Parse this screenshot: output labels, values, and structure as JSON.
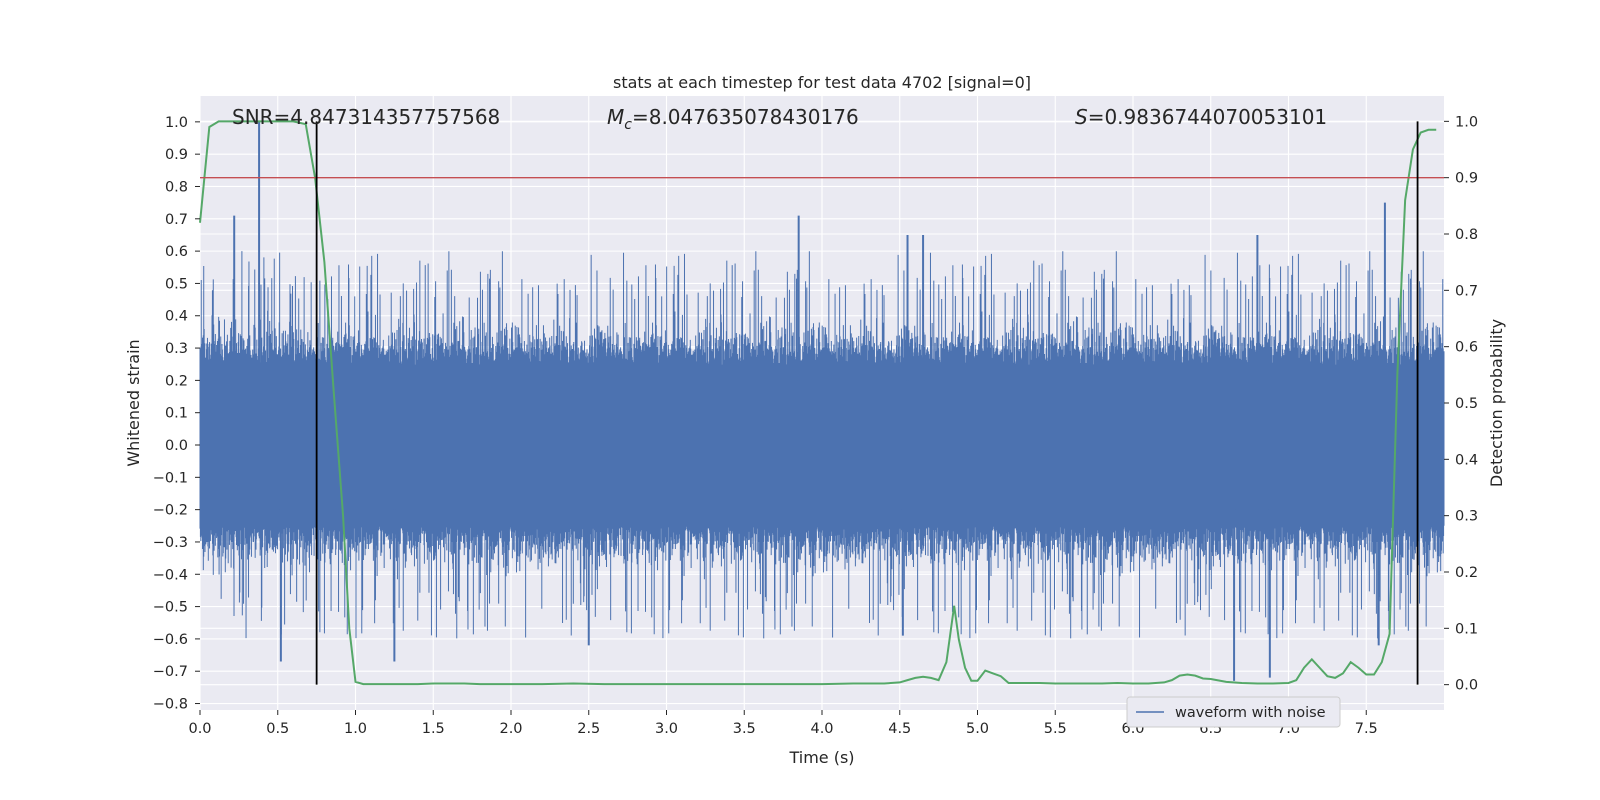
{
  "chart_data": {
    "type": "line",
    "title": "stats at each timestep for test data 4702 [signal=0]",
    "xlabel": "Time (s)",
    "ylabel": "Whitened strain",
    "y2label": "Detection probability",
    "xlim": [
      0.0,
      8.0
    ],
    "ylim": [
      -0.82,
      1.08
    ],
    "y2lim": [
      -0.045,
      1.045
    ],
    "x_ticks": [
      0.0,
      0.5,
      1.0,
      1.5,
      2.0,
      2.5,
      3.0,
      3.5,
      4.0,
      4.5,
      5.0,
      5.5,
      6.0,
      6.5,
      7.0,
      7.5
    ],
    "x_tick_labels": [
      "0.0",
      "0.5",
      "1.0",
      "1.5",
      "2.0",
      "2.5",
      "3.0",
      "3.5",
      "4.0",
      "4.5",
      "5.0",
      "5.5",
      "6.0",
      "6.5",
      "7.0",
      "7.5"
    ],
    "y_ticks": [
      1.0,
      0.9,
      0.8,
      0.7,
      0.6,
      0.5,
      0.4,
      0.3,
      0.2,
      0.1,
      0.0,
      -0.1,
      -0.2,
      -0.3,
      -0.4,
      -0.5,
      -0.6,
      -0.7,
      -0.8
    ],
    "y_tick_labels": [
      "1.0",
      "0.9",
      "0.8",
      "0.7",
      "0.6",
      "0.5",
      "0.4",
      "0.3",
      "0.2",
      "0.1",
      "0.0",
      "−0.1",
      "−0.2",
      "−0.3",
      "−0.4",
      "−0.5",
      "−0.6",
      "−0.7",
      "−0.8"
    ],
    "y2_ticks": [
      1.0,
      0.9,
      0.8,
      0.7,
      0.6,
      0.5,
      0.4,
      0.3,
      0.2,
      0.1,
      0.0
    ],
    "y2_tick_labels": [
      "1.0",
      "0.9",
      "0.8",
      "0.7",
      "0.6",
      "0.5",
      "0.4",
      "0.3",
      "0.2",
      "0.1",
      "0.0"
    ],
    "grid": true,
    "legend_position": "lower-right",
    "annotations": {
      "snr": "SNR=4.847314357757568",
      "mc_symbol": "M",
      "mc_subscript": "c",
      "mc_value": "=8.047635078430176",
      "s_symbol": "S",
      "s_value": "=0.9836744070053101"
    },
    "series": [
      {
        "name": "waveform with noise",
        "axis": "left",
        "color": "#4c72b0",
        "style": "dense-noise",
        "x_range": [
          0.0,
          8.0
        ],
        "core_band": [
          -0.2,
          0.2
        ],
        "typical_envelope": [
          -0.45,
          0.45
        ],
        "peaks": [
          {
            "x": 0.38,
            "y": 1.0
          },
          {
            "x": 0.22,
            "y": 0.71
          },
          {
            "x": 3.85,
            "y": 0.71
          },
          {
            "x": 7.62,
            "y": 0.75
          },
          {
            "x": 4.55,
            "y": 0.65
          },
          {
            "x": 4.65,
            "y": 0.65
          },
          {
            "x": 6.8,
            "y": 0.65
          },
          {
            "x": 2.5,
            "y": -0.62
          },
          {
            "x": 1.25,
            "y": -0.67
          },
          {
            "x": 0.52,
            "y": -0.67
          },
          {
            "x": 6.65,
            "y": -0.73
          },
          {
            "x": 6.88,
            "y": -0.72
          },
          {
            "x": 7.58,
            "y": -0.62
          },
          {
            "x": 4.52,
            "y": -0.59
          }
        ]
      },
      {
        "name": "",
        "axis": "right",
        "color": "#55a868",
        "x": [
          0.0,
          0.06,
          0.12,
          0.2,
          0.3,
          0.4,
          0.5,
          0.6,
          0.68,
          0.74,
          0.8,
          0.86,
          0.92,
          0.96,
          1.0,
          1.05,
          1.1,
          1.2,
          1.3,
          1.4,
          1.5,
          1.6,
          1.7,
          1.8,
          1.9,
          2.0,
          2.2,
          2.4,
          2.6,
          2.8,
          3.0,
          3.2,
          3.4,
          3.6,
          3.8,
          4.0,
          4.2,
          4.4,
          4.5,
          4.55,
          4.6,
          4.65,
          4.7,
          4.75,
          4.8,
          4.85,
          4.88,
          4.92,
          4.96,
          5.0,
          5.05,
          5.1,
          5.15,
          5.2,
          5.25,
          5.3,
          5.4,
          5.5,
          5.6,
          5.7,
          5.8,
          5.9,
          6.0,
          6.1,
          6.2,
          6.25,
          6.3,
          6.35,
          6.4,
          6.45,
          6.5,
          6.6,
          6.7,
          6.8,
          6.9,
          7.0,
          7.05,
          7.1,
          7.15,
          7.2,
          7.25,
          7.3,
          7.35,
          7.4,
          7.45,
          7.5,
          7.55,
          7.6,
          7.65,
          7.7,
          7.75,
          7.8,
          7.85,
          7.9,
          7.95
        ],
        "values": [
          0.82,
          0.99,
          1.0,
          1.0,
          1.0,
          1.0,
          1.0,
          1.0,
          0.995,
          0.9,
          0.75,
          0.52,
          0.3,
          0.1,
          0.005,
          0.001,
          0.001,
          0.001,
          0.001,
          0.001,
          0.002,
          0.002,
          0.002,
          0.001,
          0.001,
          0.001,
          0.001,
          0.002,
          0.001,
          0.001,
          0.001,
          0.001,
          0.001,
          0.001,
          0.001,
          0.001,
          0.002,
          0.002,
          0.004,
          0.008,
          0.012,
          0.014,
          0.012,
          0.008,
          0.04,
          0.14,
          0.08,
          0.03,
          0.007,
          0.007,
          0.025,
          0.02,
          0.015,
          0.003,
          0.003,
          0.003,
          0.003,
          0.002,
          0.002,
          0.002,
          0.002,
          0.003,
          0.002,
          0.002,
          0.004,
          0.008,
          0.016,
          0.018,
          0.016,
          0.011,
          0.01,
          0.005,
          0.003,
          0.002,
          0.002,
          0.003,
          0.008,
          0.03,
          0.045,
          0.03,
          0.015,
          0.012,
          0.02,
          0.04,
          0.03,
          0.018,
          0.018,
          0.04,
          0.09,
          0.55,
          0.86,
          0.95,
          0.98,
          0.985,
          0.985
        ]
      }
    ],
    "horizontal_lines": [
      {
        "axis": "right",
        "y": 0.9,
        "color": "#c44e52"
      }
    ],
    "vertical_lines": [
      {
        "x": 0.75,
        "y_range_right": [
          0.0,
          1.0
        ],
        "color": "#000000"
      },
      {
        "x": 7.83,
        "y_range_right": [
          0.0,
          1.0
        ],
        "color": "#000000"
      }
    ]
  }
}
